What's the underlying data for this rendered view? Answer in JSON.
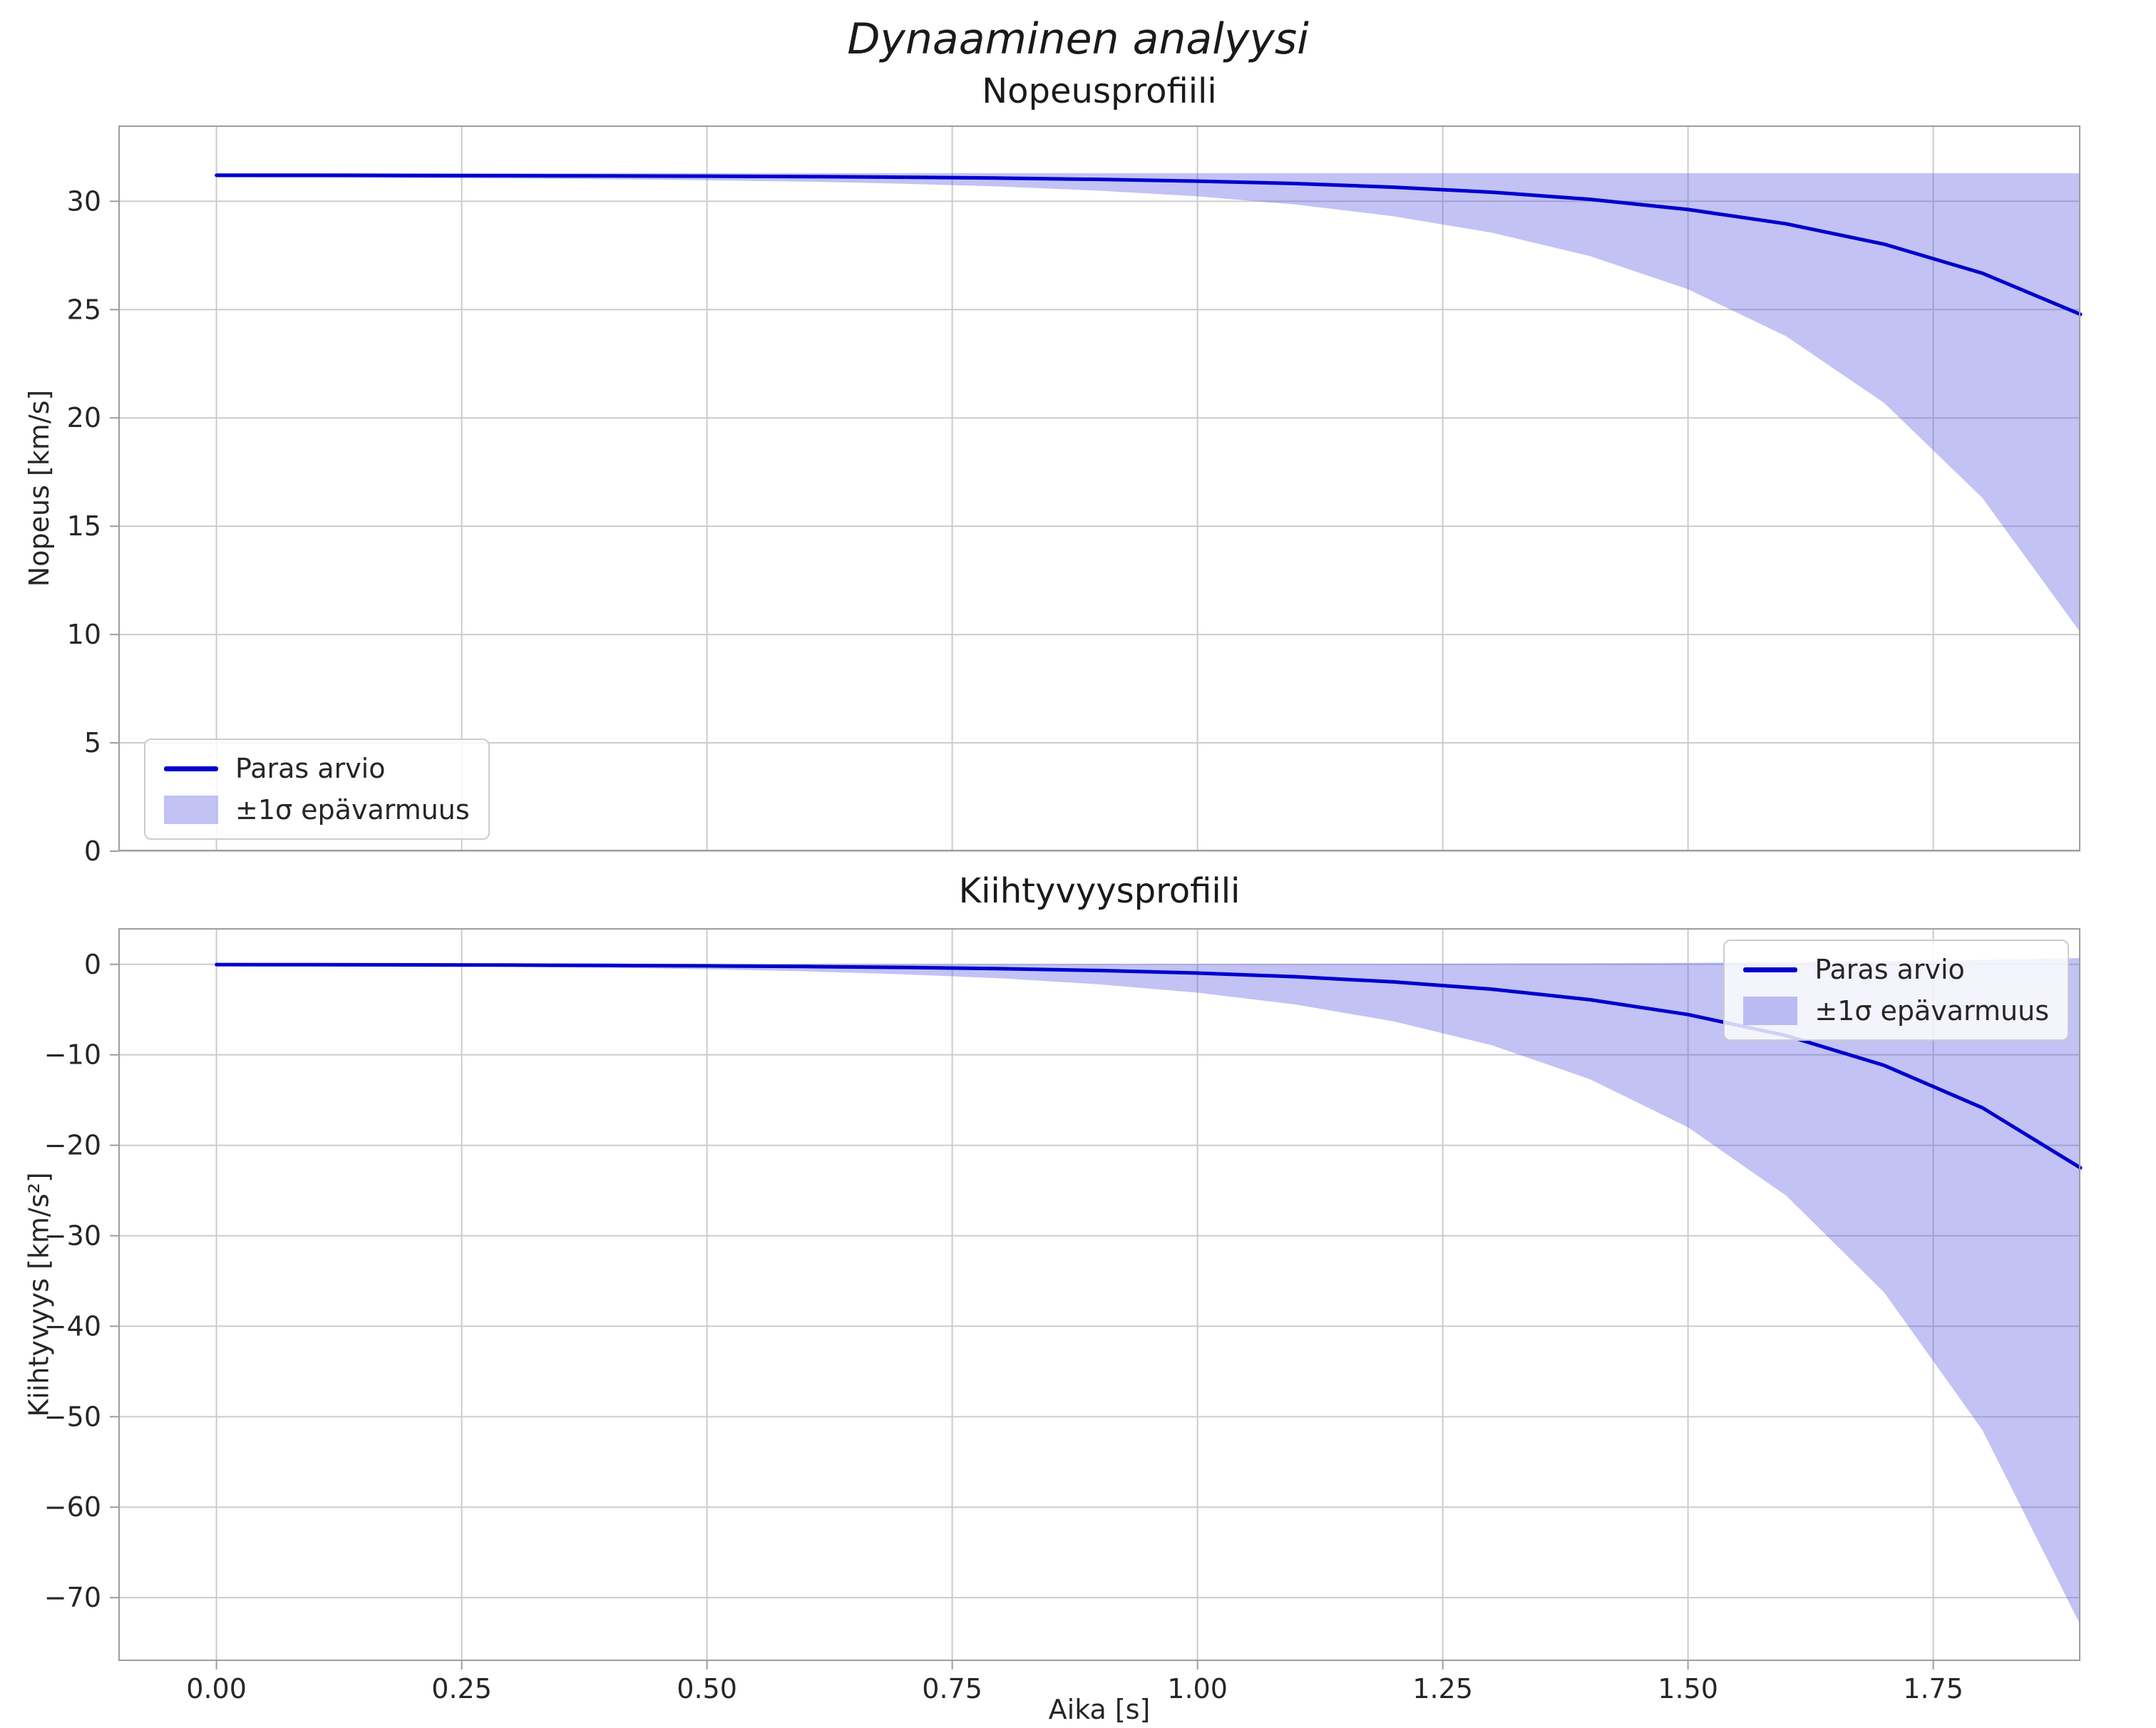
{
  "figure": {
    "title": "Dynaaminen analyysi",
    "xlabel": "Aika [s]"
  },
  "colors": {
    "line": "#0000cd",
    "band": "rgba(80,80,225,0.35)",
    "grid": "#cccccc",
    "spine": "#9e9e9e",
    "text": "#262626",
    "background": "#ffffff"
  },
  "chart_data": [
    {
      "type": "line",
      "title": "Nopeusprofiili",
      "ylabel": "Nopeus [km/s]",
      "x": [
        0.0,
        0.1,
        0.2,
        0.3,
        0.4,
        0.5,
        0.6,
        0.7,
        0.8,
        0.9,
        1.0,
        1.1,
        1.2,
        1.3,
        1.4,
        1.5,
        1.6,
        1.7,
        1.8,
        1.9
      ],
      "series": [
        {
          "name": "Paras arvio",
          "values": [
            31.2,
            31.2,
            31.19,
            31.18,
            31.17,
            31.16,
            31.14,
            31.11,
            31.07,
            31.01,
            30.93,
            30.82,
            30.65,
            30.42,
            30.09,
            29.62,
            28.96,
            28.02,
            26.68,
            24.78
          ]
        }
      ],
      "band": {
        "name": "±1σ epävarmuus",
        "high": [
          31.3,
          31.3,
          31.3,
          31.3,
          31.3,
          31.3,
          31.3,
          31.3,
          31.3,
          31.3,
          31.3,
          31.3,
          31.3,
          31.3,
          31.3,
          31.3,
          31.3,
          31.3,
          31.3,
          31.3
        ],
        "low": [
          31.1,
          31.09,
          31.07,
          31.05,
          31.02,
          30.97,
          30.91,
          30.81,
          30.68,
          30.49,
          30.23,
          29.85,
          29.31,
          28.55,
          27.47,
          25.94,
          23.77,
          20.69,
          16.31,
          10.1
        ]
      },
      "legend": [
        "Paras arvio",
        "±1σ epävarmuus"
      ],
      "legend_position": "lower left",
      "xlim": [
        -0.1,
        1.9
      ],
      "ylim": [
        0,
        33.5
      ],
      "xticks": [
        0,
        0.25,
        0.5,
        0.75,
        1.0,
        1.25,
        1.5,
        1.75
      ],
      "xtick_labels": [
        "0.00",
        "0.25",
        "0.50",
        "0.75",
        "1.00",
        "1.25",
        "1.50",
        "1.75"
      ],
      "show_x_labels": false,
      "yticks": [
        0,
        5,
        10,
        15,
        20,
        25,
        30
      ],
      "ytick_labels": [
        "0",
        "5",
        "10",
        "15",
        "20",
        "25",
        "30"
      ],
      "grid": true
    },
    {
      "type": "line",
      "title": "Kiihtyvyysprofiili",
      "ylabel": "Kiihtyvyys [km/s²]",
      "x": [
        0.0,
        0.1,
        0.2,
        0.3,
        0.4,
        0.5,
        0.6,
        0.7,
        0.8,
        0.9,
        1.0,
        1.1,
        1.2,
        1.3,
        1.4,
        1.5,
        1.6,
        1.7,
        1.8,
        1.9
      ],
      "series": [
        {
          "name": "Paras arvio",
          "values": [
            -0.03,
            -0.04,
            -0.06,
            -0.08,
            -0.12,
            -0.17,
            -0.24,
            -0.34,
            -0.48,
            -0.68,
            -0.96,
            -1.37,
            -1.94,
            -2.75,
            -3.91,
            -5.55,
            -7.87,
            -11.17,
            -15.85,
            -22.49
          ]
        }
      ],
      "band": {
        "name": "±1σ epävarmuus",
        "high": [
          0,
          0,
          0,
          0,
          0,
          0.01,
          0.01,
          0.01,
          0.01,
          0.02,
          0.03,
          0.04,
          0.06,
          0.09,
          0.12,
          0.17,
          0.24,
          0.35,
          0.49,
          0.7
        ],
        "low": [
          -0.09,
          -0.13,
          -0.19,
          -0.27,
          -0.38,
          -0.54,
          -0.77,
          -1.1,
          -1.55,
          -2.21,
          -3.13,
          -4.44,
          -6.3,
          -8.94,
          -12.69,
          -18.01,
          -25.56,
          -36.27,
          -51.46,
          -73.03
        ]
      },
      "legend": [
        "Paras arvio",
        "±1σ epävarmuus"
      ],
      "legend_position": "upper right",
      "xlim": [
        -0.1,
        1.9
      ],
      "ylim": [
        -77,
        4
      ],
      "xticks": [
        0,
        0.25,
        0.5,
        0.75,
        1.0,
        1.25,
        1.5,
        1.75
      ],
      "xtick_labels": [
        "0.00",
        "0.25",
        "0.50",
        "0.75",
        "1.00",
        "1.25",
        "1.50",
        "1.75"
      ],
      "show_x_labels": true,
      "yticks": [
        0,
        -10,
        -20,
        -30,
        -40,
        -50,
        -60,
        -70
      ],
      "ytick_labels": [
        "0",
        "−10",
        "−20",
        "−30",
        "−40",
        "−50",
        "−60",
        "−70"
      ],
      "grid": true
    }
  ]
}
